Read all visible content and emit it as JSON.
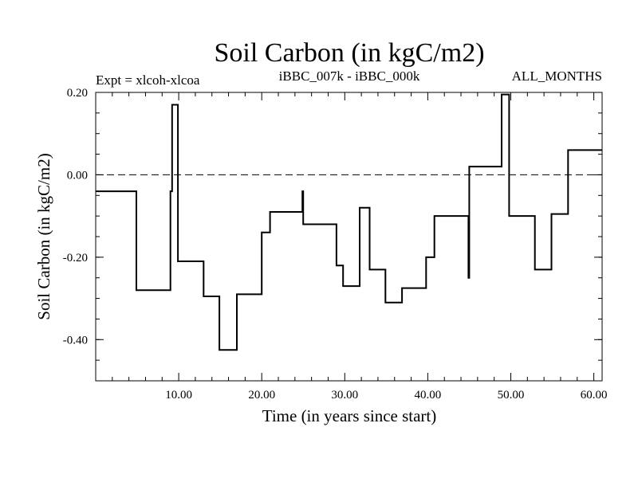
{
  "chart_data": {
    "type": "line",
    "title": "Soil Carbon (in kgC/m2)",
    "subtitle_left": "Expt = xlcoh-xlcoa",
    "subtitle_center": "iBBC_007k - iBBC_000k",
    "subtitle_right": "ALL_MONTHS",
    "xlabel": "Time (in years since start)",
    "ylabel": "Soil Carbon (in kgC/m2)",
    "xlim": [
      0,
      61
    ],
    "ylim": [
      -0.5,
      0.2
    ],
    "x_ticks": [
      10,
      20,
      30,
      40,
      50,
      60
    ],
    "x_tick_labels": [
      "10.00",
      "20.00",
      "30.00",
      "40.00",
      "50.00",
      "60.00"
    ],
    "y_ticks": [
      0.2,
      0.0,
      -0.2,
      -0.4
    ],
    "y_tick_labels": [
      "0.20",
      "0.00",
      "-0.20",
      "-0.40"
    ],
    "reference_line": {
      "y": 0.0,
      "style": "dashed"
    },
    "grid": false,
    "series": [
      {
        "x": [
          0,
          4.9,
          4.9,
          9.0,
          9.0,
          9.2,
          9.2,
          9.9,
          9.9,
          13.0,
          13.0,
          14.9,
          14.9,
          17.0,
          17.0,
          20.0,
          20.0,
          21.0,
          21.0,
          24.9,
          24.9,
          25.0,
          25.0,
          29.0,
          29.0,
          29.8,
          29.8,
          31.8,
          31.8,
          33.0,
          33.0,
          34.9,
          34.9,
          36.9,
          36.9,
          39.8,
          39.8,
          40.8,
          40.8,
          44.9,
          44.9,
          45.0,
          45.0,
          48.9,
          48.9,
          49.8,
          49.8,
          52.9,
          52.9,
          54.9,
          54.9,
          56.9,
          56.9,
          59.9,
          59.9,
          61
        ],
        "y": [
          -0.04,
          -0.04,
          -0.28,
          -0.28,
          -0.04,
          -0.04,
          0.17,
          0.17,
          -0.21,
          -0.21,
          -0.295,
          -0.295,
          -0.425,
          -0.425,
          -0.29,
          -0.29,
          -0.14,
          -0.14,
          -0.09,
          -0.09,
          -0.04,
          -0.04,
          -0.12,
          -0.12,
          -0.22,
          -0.22,
          -0.27,
          -0.27,
          -0.08,
          -0.08,
          -0.23,
          -0.23,
          -0.31,
          -0.31,
          -0.275,
          -0.275,
          -0.2,
          -0.2,
          -0.1,
          -0.1,
          -0.25,
          -0.25,
          0.02,
          0.02,
          0.195,
          0.195,
          -0.1,
          -0.1,
          -0.23,
          -0.23,
          -0.095,
          -0.095,
          0.06,
          0.06,
          0.06,
          0.06
        ]
      }
    ]
  }
}
